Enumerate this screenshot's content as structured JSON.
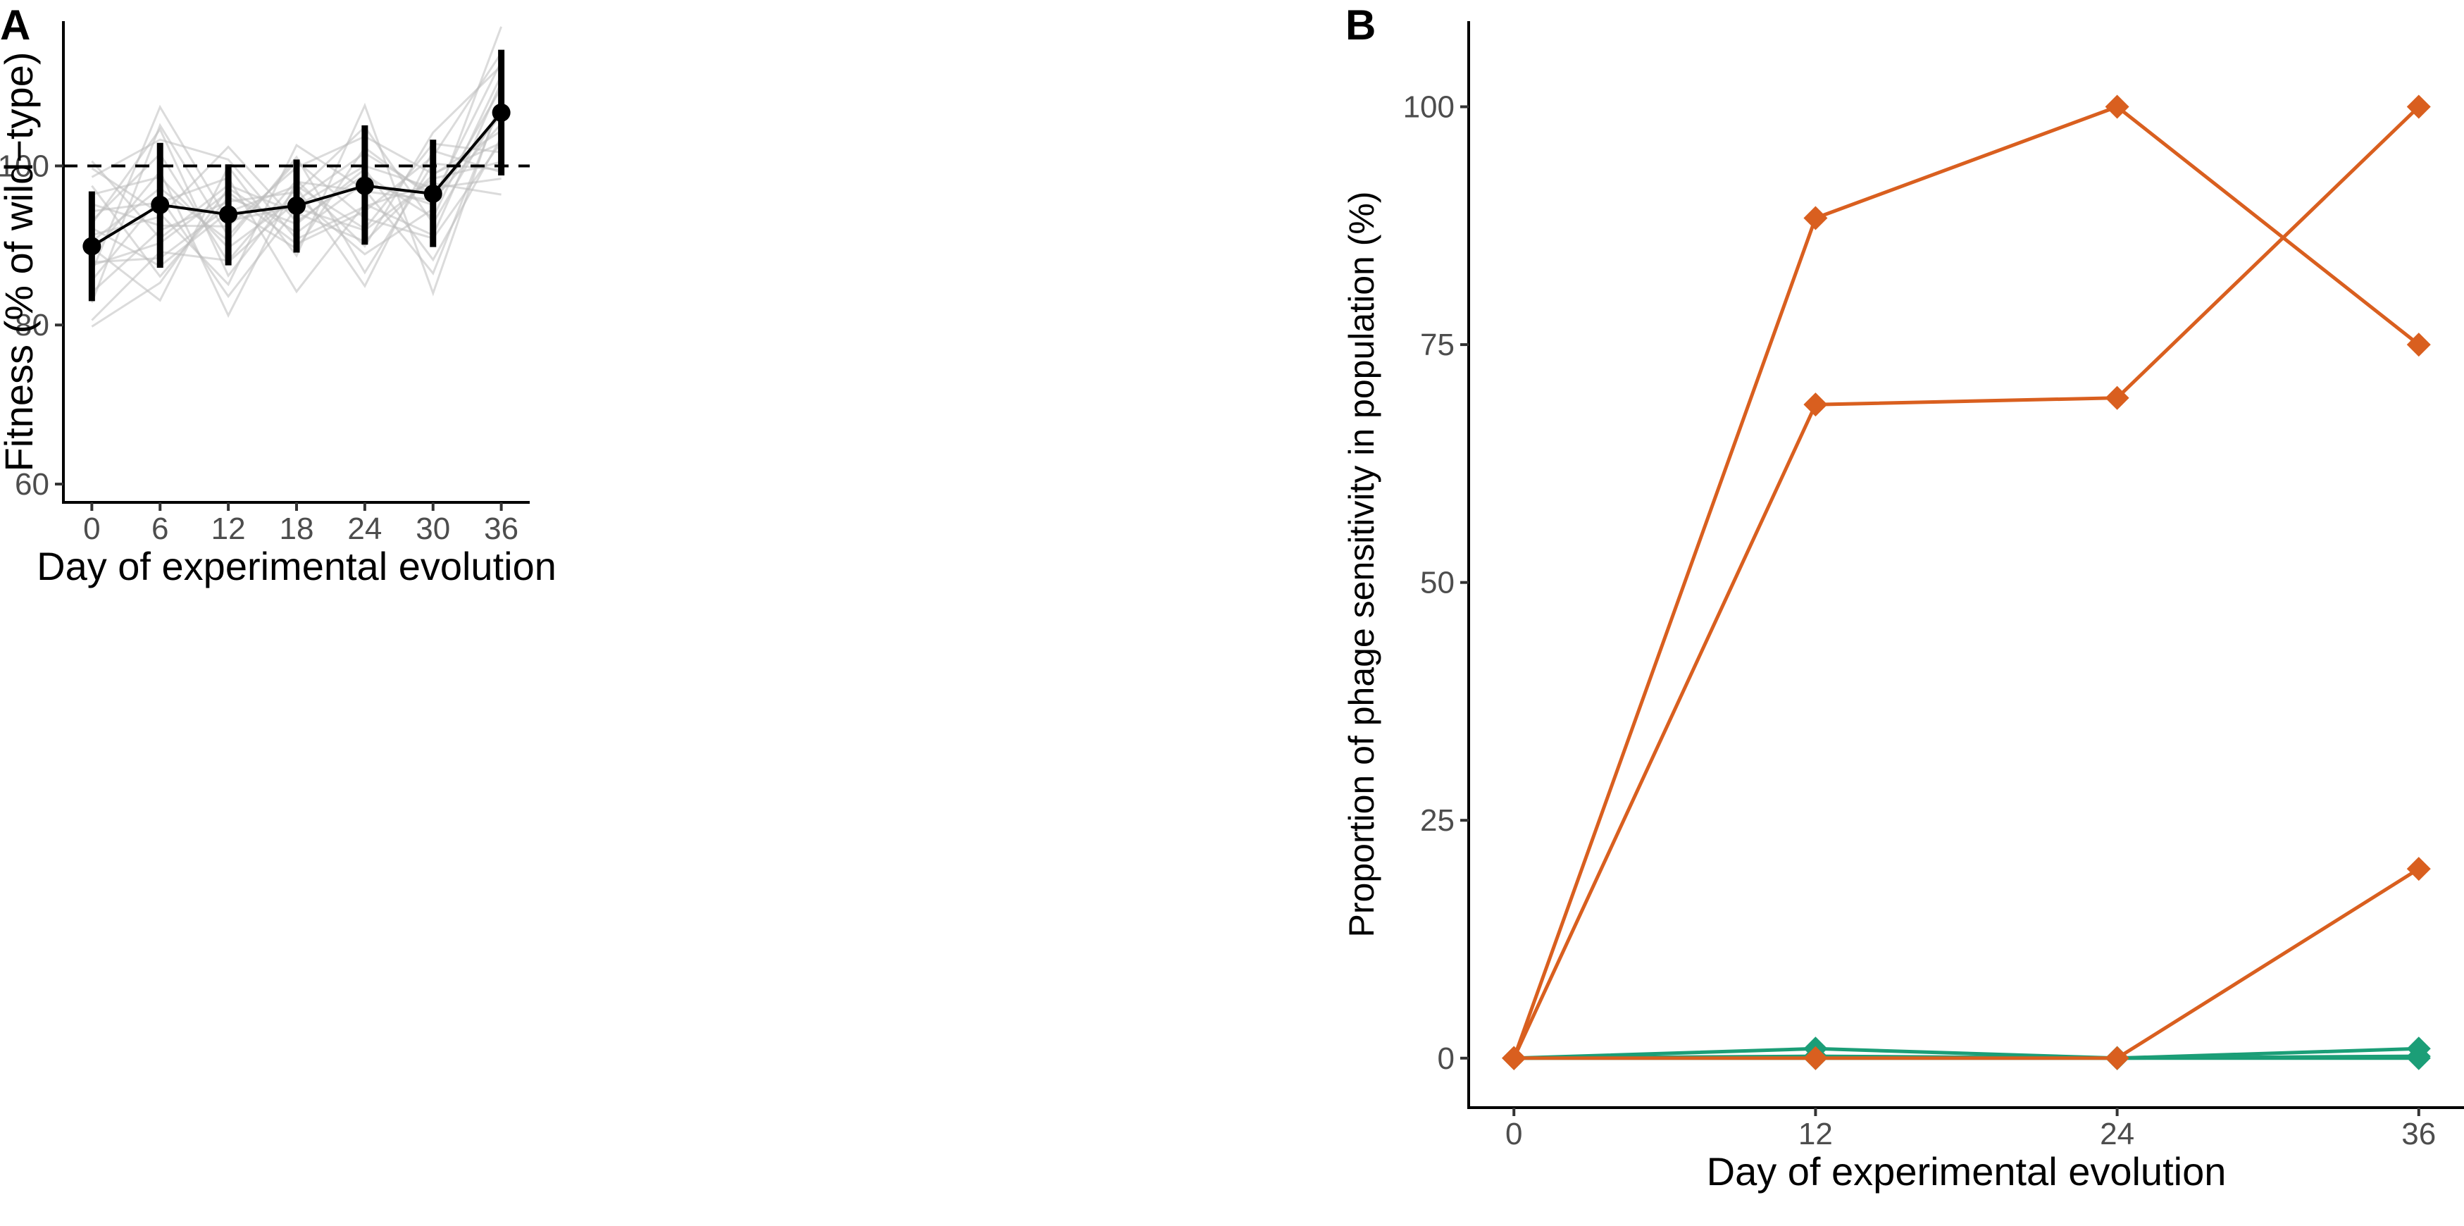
{
  "chart_data": [
    {
      "panel": "A",
      "type": "line",
      "xlabel": "Day of experimental evolution",
      "ylabel": "Fitness (% of wild−type)",
      "x_ticks": [
        0,
        6,
        12,
        18,
        24,
        30,
        36
      ],
      "y_ticks": [
        60,
        80,
        100
      ],
      "xlim": [
        -2.5,
        38.5
      ],
      "ylim": [
        57.7,
        118.2
      ],
      "reference_line": {
        "y": 100,
        "style": "dashed",
        "color": "#000000"
      },
      "grid": false,
      "mean_series": {
        "x": [
          0,
          6,
          12,
          18,
          24,
          30,
          36
        ],
        "y": [
          89.9,
          95.1,
          93.9,
          95.0,
          97.5,
          96.5,
          106.7
        ],
        "error_low": [
          83.0,
          87.2,
          87.5,
          89.1,
          90.1,
          89.8,
          98.8
        ],
        "error_high": [
          96.8,
          102.9,
          100.2,
          100.8,
          105.1,
          103.3,
          114.6
        ],
        "color": "#000000"
      },
      "replicates": {
        "color": "#bdbdbd",
        "x": [
          0,
          6,
          12,
          18,
          24,
          30,
          36
        ],
        "lines": [
          [
            79.8,
            85.3,
            97.2,
            91.6,
            97.9,
            95.1,
            109.8
          ],
          [
            80.6,
            89.2,
            88.1,
            98.2,
            89.9,
            104.2,
            112.6
          ],
          [
            82.8,
            105.1,
            91.2,
            100.6,
            93.4,
            90.9,
            103.0
          ],
          [
            84.1,
            91.9,
            95.5,
            96.7,
            104.9,
            92.8,
            107.4
          ],
          [
            85.6,
            96.0,
            83.6,
            94.7,
            91.9,
            98.4,
            100.5
          ],
          [
            86.7,
            107.4,
            93.1,
            94.9,
            100.0,
            97.2,
            98.4
          ],
          [
            87.5,
            90.3,
            96.7,
            90.2,
            94.3,
            101.2,
            114.2
          ],
          [
            88.9,
            99.3,
            81.2,
            98.0,
            96.8,
            95.7,
            105.3
          ],
          [
            89.7,
            83.1,
            99.9,
            88.7,
            107.6,
            84.0,
            108.6
          ],
          [
            90.5,
            97.2,
            90.6,
            101.1,
            86.6,
            100.3,
            99.5
          ],
          [
            91.3,
            93.6,
            102.4,
            93.0,
            98.9,
            93.5,
            111.4
          ],
          [
            92.2,
            87.4,
            94.2,
            97.5,
            92.1,
            102.8,
            101.7
          ],
          [
            93.1,
            101.5,
            87.9,
            95.6,
            101.6,
            96.4,
            106.3
          ],
          [
            94.3,
            95.4,
            98.5,
            84.2,
            95.2,
            91.3,
            110.5
          ],
          [
            95.2,
            92.5,
            92.4,
            99.8,
            103.7,
            99.0,
            102.9
          ],
          [
            96.4,
            98.6,
            89.7,
            96.1,
            88.9,
            94.6,
            117.5
          ],
          [
            97.5,
            86.1,
            96.0,
            92.7,
            99.6,
            88.2,
            103.6
          ],
          [
            98.6,
            103.3,
            100.8,
            90.8,
            94.9,
            97.8,
            96.4
          ],
          [
            99.7,
            94.0,
            85.1,
            102.6,
            97.0,
            86.5,
            107.9
          ],
          [
            100.6,
            90.9,
            97.6,
            94.1,
            90.5,
            98.9,
            104.4
          ],
          [
            92.7,
            104.6,
            86.2,
            97.3,
            84.9,
            101.9,
            99.2
          ],
          [
            87.9,
            88.4,
            94.8,
            89.6,
            102.3,
            95.9,
            113.1
          ]
        ]
      }
    },
    {
      "panel": "B",
      "type": "line",
      "xlabel": "Day of experimental evolution",
      "ylabel": "Proportion of phage sensitivity in population (%)",
      "x_ticks": [
        0,
        12,
        24,
        36
      ],
      "y_ticks": [
        0,
        25,
        50,
        75,
        100
      ],
      "xlim": [
        -1.8,
        37.8
      ],
      "ylim": [
        -5.2,
        109.0
      ],
      "grid": false,
      "marker": "diamond",
      "series": [
        {
          "color": "#d95f1f",
          "x": [
            0,
            12,
            24,
            36
          ],
          "values": [
            0,
            88.3,
            100,
            75
          ]
        },
        {
          "color": "#d95f1f",
          "x": [
            0,
            12,
            24,
            36
          ],
          "values": [
            0,
            68.7,
            69.4,
            100
          ]
        },
        {
          "color": "#d95f1f",
          "x": [
            0,
            12,
            24,
            36
          ],
          "values": [
            0,
            0,
            0,
            19.9
          ]
        },
        {
          "color": "#1b9e77",
          "x": [
            0,
            12,
            24,
            36
          ],
          "values": [
            0,
            1.0,
            0,
            1.0
          ]
        },
        {
          "color": "#1b9e77",
          "x": [
            0,
            12,
            24,
            36
          ],
          "values": [
            0,
            0,
            0,
            0
          ]
        },
        {
          "color": "#1b9e77",
          "x": [
            0,
            12,
            24,
            36
          ],
          "values": [
            0,
            0.2,
            0,
            0.2
          ]
        }
      ]
    }
  ]
}
